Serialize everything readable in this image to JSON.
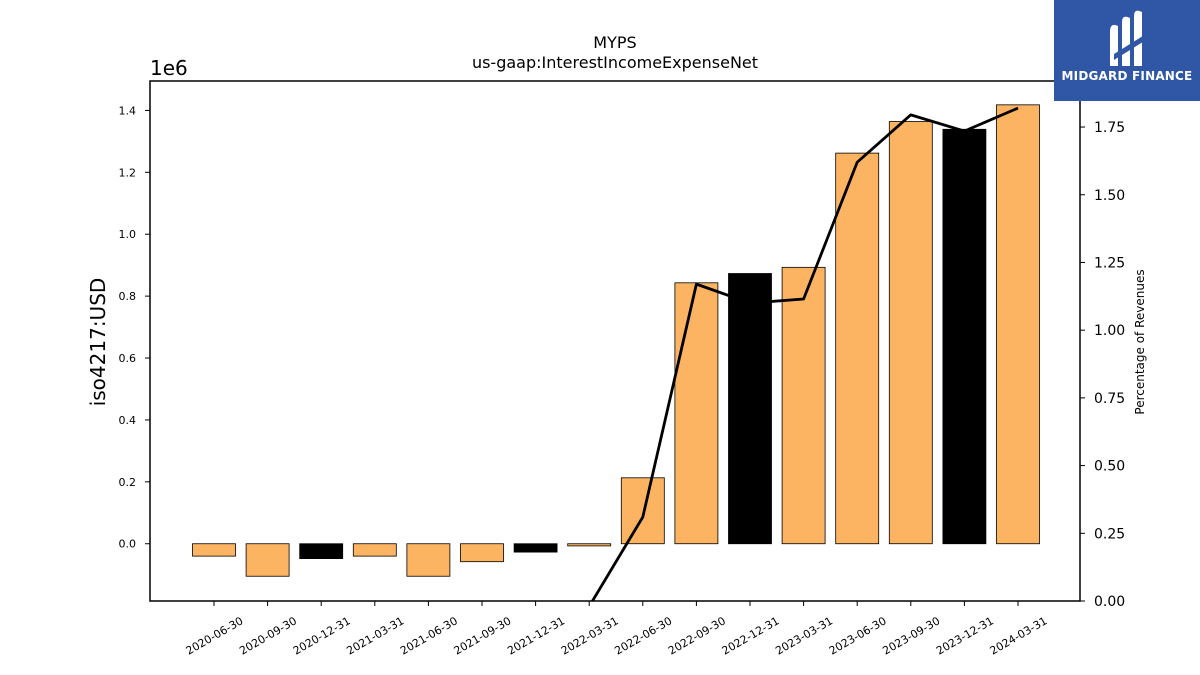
{
  "chart_data": {
    "type": "bar",
    "title": "MYPS",
    "subtitle": "us-gaap:InterestIncomeExpenseNet",
    "ylabel": "iso4217:USD",
    "y2label": "Percentage of Revenues",
    "offset_text": "1e6",
    "ylim": [
      -0.185,
      1.495
    ],
    "y2lim": [
      0,
      1.92
    ],
    "yticks": [
      "0.0",
      "0.2",
      "0.4",
      "0.6",
      "0.8",
      "1.0",
      "1.2",
      "1.4"
    ],
    "y2ticks": [
      "0.00",
      "0.25",
      "0.50",
      "0.75",
      "1.00",
      "1.25",
      "1.50",
      "1.75"
    ],
    "categories": [
      "2020-06-30",
      "2020-09-30",
      "2020-12-31",
      "2021-03-31",
      "2021-06-30",
      "2021-09-30",
      "2021-12-31",
      "2022-03-31",
      "2022-06-30",
      "2022-09-30",
      "2022-12-31",
      "2023-03-31",
      "2023-06-30",
      "2023-09-30",
      "2023-12-31",
      "2024-03-31"
    ],
    "series": [
      {
        "values": [
          -0.04,
          -0.105,
          -0.048,
          -0.04,
          -0.105,
          -0.058,
          -0.027,
          -0.007,
          0.213,
          0.843,
          0.873,
          0.893,
          1.262,
          1.364,
          1.339,
          1.418
        ],
        "colors": [
          "#fdb462",
          "#fdb462",
          "#000000",
          "#fdb462",
          "#fdb462",
          "#fdb462",
          "#000000",
          "#fdb462",
          "#fdb462",
          "#fdb462",
          "#000000",
          "#fdb462",
          "#fdb462",
          "#fdb462",
          "#000000",
          "#fdb462"
        ]
      },
      {
        "axis": "right",
        "type": "line",
        "values": [
          null,
          null,
          null,
          null,
          null,
          null,
          null,
          -0.02,
          0.31,
          1.17,
          1.1,
          1.115,
          1.62,
          1.795,
          1.735,
          1.82
        ]
      }
    ],
    "grid": false,
    "bar_edge_color": "#000000",
    "line_color": "#000000"
  },
  "logo": {
    "text": "MIDGARD FINANCE",
    "bg": "#2f57a6"
  }
}
